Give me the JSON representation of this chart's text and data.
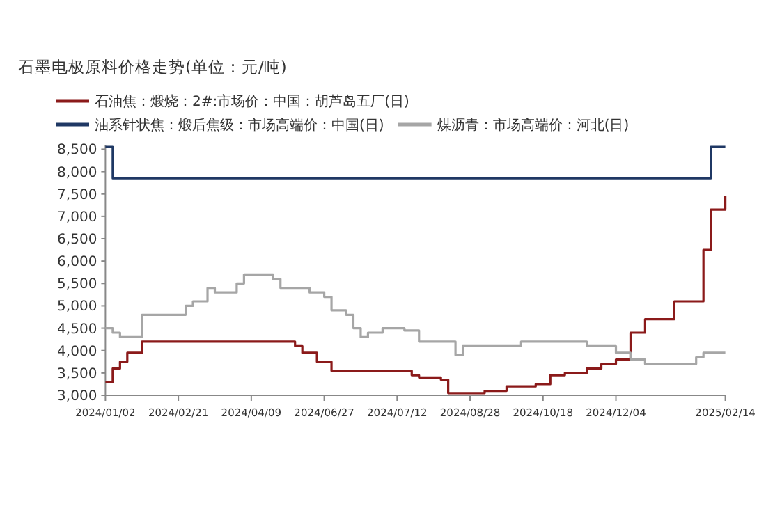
{
  "chart_data": {
    "type": "step",
    "title": "石墨电极原料价格走势(单位：元/吨)",
    "categories": [
      "2024/01/02",
      null,
      null,
      null,
      null,
      null,
      null,
      null,
      null,
      null,
      "2024/02/21",
      null,
      null,
      null,
      null,
      null,
      null,
      null,
      null,
      null,
      "2024/04/09",
      null,
      null,
      null,
      null,
      null,
      null,
      null,
      null,
      null,
      "2024/06/27",
      null,
      null,
      null,
      null,
      null,
      null,
      null,
      null,
      null,
      "2024/07/12",
      null,
      null,
      null,
      null,
      null,
      null,
      null,
      null,
      null,
      "2024/08/28",
      null,
      null,
      null,
      null,
      null,
      null,
      null,
      null,
      null,
      "2024/10/18",
      null,
      null,
      null,
      null,
      null,
      null,
      null,
      null,
      null,
      "2024/12/04",
      null,
      null,
      null,
      null,
      null,
      null,
      null,
      null,
      null,
      null,
      null,
      null,
      null,
      null,
      "2025/02/14"
    ],
    "series": [
      {
        "name": "石油焦：煅烧：2#:市场价：中国：胡芦岛五厂(日)",
        "color": "#8b1a1a",
        "values": [
          3300,
          3600,
          3750,
          3950,
          3950,
          4200,
          4200,
          4200,
          4200,
          4200,
          4200,
          4200,
          4200,
          4200,
          4200,
          4200,
          4200,
          4200,
          4200,
          4200,
          4200,
          4200,
          4200,
          4200,
          4200,
          4200,
          4100,
          3950,
          3950,
          3750,
          3750,
          3550,
          3550,
          3550,
          3550,
          3550,
          3550,
          3550,
          3550,
          3550,
          3550,
          3550,
          3450,
          3400,
          3400,
          3400,
          3350,
          3050,
          3050,
          3050,
          3050,
          3050,
          3100,
          3100,
          3100,
          3200,
          3200,
          3200,
          3200,
          3250,
          3250,
          3450,
          3450,
          3500,
          3500,
          3500,
          3600,
          3600,
          3700,
          3700,
          3800,
          3800,
          4400,
          4400,
          4700,
          4700,
          4700,
          4700,
          5100,
          5100,
          5100,
          5100,
          6250,
          7150,
          7150,
          7450
        ]
      },
      {
        "name": "油系针状焦：煅后焦级：市场高端价：中国(日)",
        "color": "#1f3864",
        "values": [
          8550,
          7850,
          7850,
          7850,
          7850,
          7850,
          7850,
          7850,
          7850,
          7850,
          7850,
          7850,
          7850,
          7850,
          7850,
          7850,
          7850,
          7850,
          7850,
          7850,
          7850,
          7850,
          7850,
          7850,
          7850,
          7850,
          7850,
          7850,
          7850,
          7850,
          7850,
          7850,
          7850,
          7850,
          7850,
          7850,
          7850,
          7850,
          7850,
          7850,
          7850,
          7850,
          7850,
          7850,
          7850,
          7850,
          7850,
          7850,
          7850,
          7850,
          7850,
          7850,
          7850,
          7850,
          7850,
          7850,
          7850,
          7850,
          7850,
          7850,
          7850,
          7850,
          7850,
          7850,
          7850,
          7850,
          7850,
          7850,
          7850,
          7850,
          7850,
          7850,
          7850,
          7850,
          7850,
          7850,
          7850,
          7850,
          7850,
          7850,
          7850,
          7850,
          7850,
          8550,
          8550,
          8550
        ]
      },
      {
        "name": "煤沥青：市场高端价：河北(日)",
        "color": "#a6a6a6",
        "values": [
          4500,
          4400,
          4300,
          4300,
          4300,
          4800,
          4800,
          4800,
          4800,
          4800,
          4800,
          5000,
          5100,
          5100,
          5400,
          5300,
          5300,
          5300,
          5500,
          5700,
          5700,
          5700,
          5700,
          5600,
          5400,
          5400,
          5400,
          5400,
          5300,
          5300,
          5200,
          4900,
          4900,
          4800,
          4500,
          4300,
          4400,
          4400,
          4500,
          4500,
          4500,
          4450,
          4450,
          4200,
          4200,
          4200,
          4200,
          4200,
          3900,
          4100,
          4100,
          4100,
          4100,
          4100,
          4100,
          4100,
          4100,
          4200,
          4200,
          4200,
          4200,
          4200,
          4200,
          4200,
          4200,
          4200,
          4100,
          4100,
          4100,
          4100,
          3950,
          3950,
          3800,
          3800,
          3700,
          3700,
          3700,
          3700,
          3700,
          3700,
          3700,
          3850,
          3950,
          3950,
          3950,
          3950
        ]
      }
    ],
    "ylim": [
      3000,
      8600
    ],
    "yticks": [
      {
        "value": 3000,
        "label": "3,000"
      },
      {
        "value": 3500,
        "label": "3,500"
      },
      {
        "value": 4000,
        "label": "4,000"
      },
      {
        "value": 4500,
        "label": "4,500"
      },
      {
        "value": 5000,
        "label": "5,000"
      },
      {
        "value": 5500,
        "label": "5,500"
      },
      {
        "value": 6000,
        "label": "6,000"
      },
      {
        "value": 6500,
        "label": "6,500"
      },
      {
        "value": 7000,
        "label": "7,000"
      },
      {
        "value": 7500,
        "label": "7,500"
      },
      {
        "value": 8000,
        "label": "8,000"
      },
      {
        "value": 8500,
        "label": "8,500"
      }
    ],
    "legend": "top",
    "grid": false
  }
}
